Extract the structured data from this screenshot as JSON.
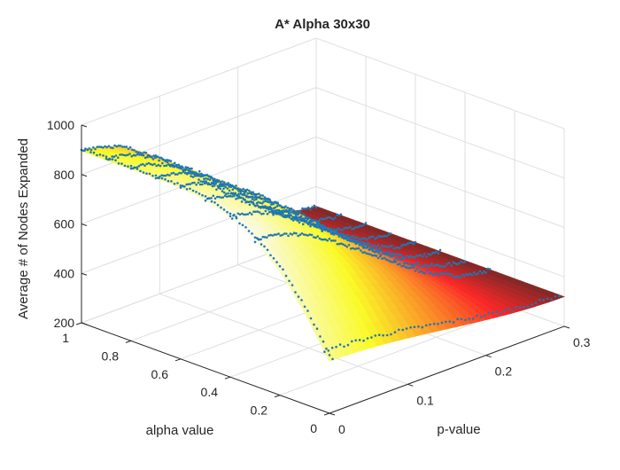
{
  "chart_data": {
    "type": "surface",
    "title": "A* Alpha 30x30",
    "xlabel": "alpha value",
    "ylabel": "p-value",
    "zlabel": "Average # of Nodes Expanded",
    "alpha_range": [
      0,
      1
    ],
    "p_range": [
      0,
      0.3
    ],
    "z_range": [
      200,
      1000
    ],
    "alpha_ticks": [
      "0",
      "0.2",
      "0.4",
      "0.6",
      "0.8",
      "1"
    ],
    "p_ticks": [
      "0",
      "0.1",
      "0.2",
      "0.3"
    ],
    "z_ticks": [
      "200",
      "400",
      "600",
      "800",
      "1000"
    ],
    "grid": true,
    "colormap": "hot",
    "surface_samples": {
      "alpha": [
        0,
        0.1,
        0.2,
        0.3,
        0.4,
        0.5,
        0.6,
        0.7,
        0.8,
        0.9,
        1.0
      ],
      "p": [
        0,
        0.05,
        0.1,
        0.15,
        0.2,
        0.25,
        0.3
      ],
      "z_at_p0": [
        410,
        570,
        700,
        790,
        845,
        880,
        893,
        895,
        895,
        895,
        895
      ],
      "z_at_p03": [
        320,
        320,
        320,
        320,
        320,
        320,
        320,
        320,
        320,
        320,
        320
      ]
    },
    "scatter_series": {
      "name": "",
      "color": "#1f77b4",
      "alpha_lines": [
        0.3,
        0.4,
        0.5,
        0.6,
        0.7,
        0.8,
        0.9,
        1.0
      ]
    }
  }
}
